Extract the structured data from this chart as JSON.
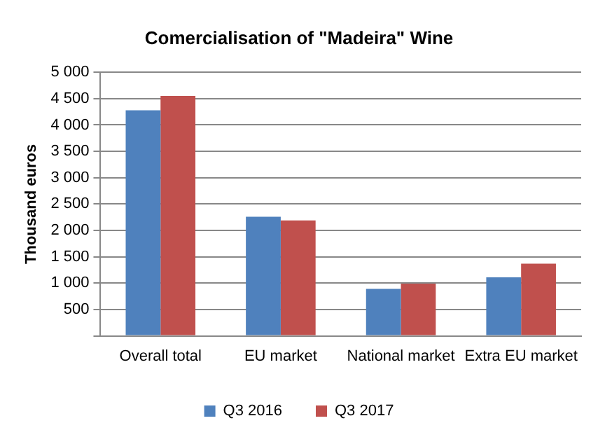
{
  "chart_data": {
    "type": "bar",
    "title": "Comercialisation of \"Madeira\" Wine",
    "ylabel": "Thousand euros",
    "categories": [
      "Overall total",
      "EU market",
      "National market",
      "Extra EU market"
    ],
    "series": [
      {
        "name": "Q3 2016",
        "color": "#4f81bd",
        "values": [
          4280,
          2260,
          890,
          1110
        ]
      },
      {
        "name": "Q3 2017",
        "color": "#c0504d",
        "values": [
          4550,
          2190,
          990,
          1370
        ]
      }
    ],
    "ylim": [
      0,
      5000
    ],
    "yticks": [
      {
        "value": 0,
        "label": null
      },
      {
        "value": 500,
        "label": "500"
      },
      {
        "value": 1000,
        "label": "1 000"
      },
      {
        "value": 1500,
        "label": "1 500"
      },
      {
        "value": 2000,
        "label": "2 000"
      },
      {
        "value": 2500,
        "label": "2 500"
      },
      {
        "value": 3000,
        "label": "3 000"
      },
      {
        "value": 3500,
        "label": "3 500"
      },
      {
        "value": 4000,
        "label": "4 000"
      },
      {
        "value": 4500,
        "label": "4 500"
      },
      {
        "value": 5000,
        "label": "5 000"
      }
    ],
    "grid": "y",
    "legend": "bottom"
  }
}
